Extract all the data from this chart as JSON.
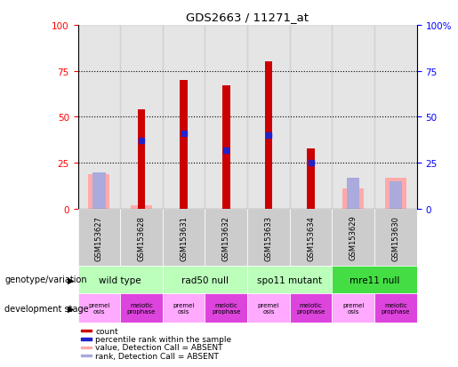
{
  "title": "GDS2663 / 11271_at",
  "samples": [
    "GSM153627",
    "GSM153628",
    "GSM153631",
    "GSM153632",
    "GSM153633",
    "GSM153634",
    "GSM153629",
    "GSM153630"
  ],
  "count_values": [
    0,
    54,
    70,
    67,
    80,
    33,
    0,
    0
  ],
  "rank_values": [
    0,
    37,
    41,
    32,
    40,
    25,
    0,
    0
  ],
  "absent_value": [
    19,
    2,
    0,
    0,
    0,
    0,
    11,
    17
  ],
  "absent_rank": [
    20,
    0,
    0,
    0,
    0,
    0,
    17,
    15
  ],
  "ylim": [
    0,
    100
  ],
  "yticks": [
    0,
    25,
    50,
    75,
    100
  ],
  "genotype_groups": [
    {
      "label": "wild type",
      "start": 0,
      "end": 2
    },
    {
      "label": "rad50 null",
      "start": 2,
      "end": 4
    },
    {
      "label": "spo11 mutant",
      "start": 4,
      "end": 6
    },
    {
      "label": "mre11 null",
      "start": 6,
      "end": 8
    }
  ],
  "dev_stage_labels": [
    "premei\nosis",
    "meiotic\nprophase",
    "premei\nosis",
    "meiotic\nprophase",
    "premei\nosis",
    "meiotic\nprophase",
    "premei\nosis",
    "meiotic\nprophase"
  ],
  "bar_color_red": "#cc0000",
  "bar_color_blue": "#2222cc",
  "absent_bar_color": "#ffaaaa",
  "absent_rank_color": "#aaaadd",
  "genotype_bg_light": "#bbffbb",
  "genotype_bg_dark": "#44dd44",
  "dev_stage_bg_light": "#ffaaff",
  "dev_stage_bg_dark": "#dd44dd",
  "sample_bg": "#cccccc",
  "legend_items": [
    {
      "color": "#cc0000",
      "label": "count"
    },
    {
      "color": "#2222cc",
      "label": "percentile rank within the sample"
    },
    {
      "color": "#ffaaaa",
      "label": "value, Detection Call = ABSENT"
    },
    {
      "color": "#aaaadd",
      "label": "rank, Detection Call = ABSENT"
    }
  ]
}
